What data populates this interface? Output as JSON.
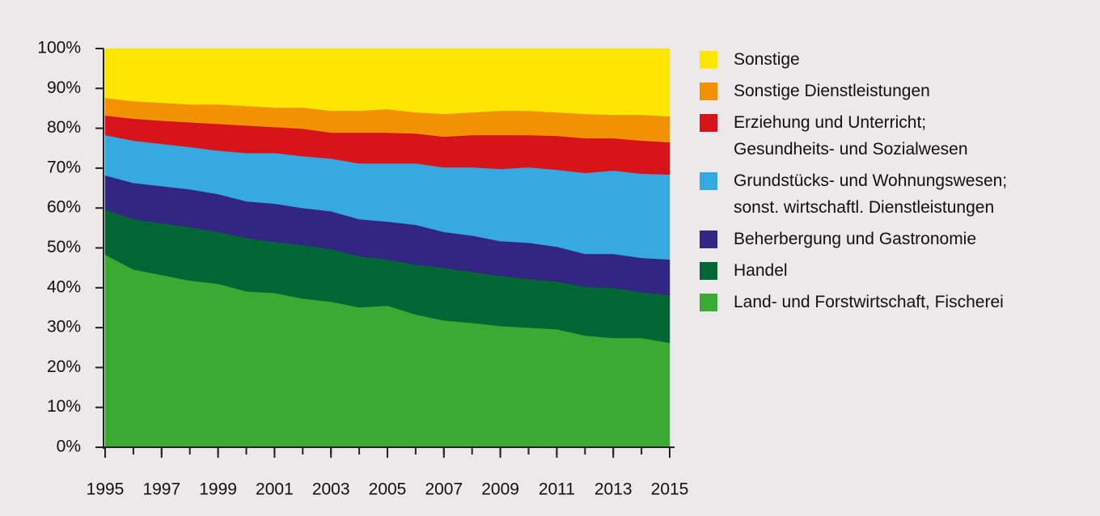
{
  "chart_data": {
    "type": "stacked-area",
    "x": [
      1995,
      1996,
      1997,
      1998,
      1999,
      2000,
      2001,
      2002,
      2003,
      2004,
      2005,
      2006,
      2007,
      2008,
      2009,
      2010,
      2011,
      2012,
      2013,
      2014,
      2015
    ],
    "xlim": [
      1995,
      2015
    ],
    "xticks": [
      1995,
      1997,
      1999,
      2001,
      2003,
      2005,
      2007,
      2009,
      2011,
      2013,
      2015
    ],
    "ylim": [
      0,
      100
    ],
    "yticks": [
      {
        "value": 0,
        "label": "0%"
      },
      {
        "value": 10,
        "label": "10%"
      },
      {
        "value": 20,
        "label": "20%"
      },
      {
        "value": 30,
        "label": "30%"
      },
      {
        "value": 40,
        "label": "40%"
      },
      {
        "value": 50,
        "label": "50%"
      },
      {
        "value": 60,
        "label": "60%"
      },
      {
        "value": 70,
        "label": "70%"
      },
      {
        "value": 80,
        "label": "80%"
      },
      {
        "value": 90,
        "label": "90%"
      },
      {
        "value": 100,
        "label": "100%"
      }
    ],
    "series": [
      {
        "name": "Sonstige",
        "color": "#ffe600",
        "values": [
          12.4,
          13.2,
          13.6,
          14.0,
          14.0,
          14.4,
          14.8,
          14.8,
          15.6,
          15.6,
          15.2,
          16.0,
          16.4,
          16.0,
          15.6,
          15.6,
          16.0,
          16.4,
          16.6,
          16.6,
          17.0
        ]
      },
      {
        "name": "Sonstige Dienstleistungen",
        "color": "#f39200",
        "values": [
          4.4,
          4.4,
          4.5,
          4.5,
          4.9,
          4.9,
          4.9,
          5.3,
          5.5,
          5.5,
          5.9,
          5.3,
          5.7,
          5.7,
          6.1,
          6.1,
          5.9,
          6.1,
          5.9,
          6.5,
          6.5
        ]
      },
      {
        "name": "Erziehung und Unterricht;\nGesundheits- und Sozialwesen",
        "color": "#d7141a",
        "values": [
          4.9,
          5.5,
          5.8,
          6.2,
          6.7,
          6.9,
          6.5,
          6.9,
          6.5,
          7.7,
          7.7,
          7.5,
          7.7,
          8.1,
          8.5,
          8.1,
          8.5,
          8.7,
          8.1,
          8.3,
          8.1
        ]
      },
      {
        "name": "Grundstücks- und Wohnungswesen;\nsonst. wirtschaftl. Dienstleistungen",
        "color": "#36a9e1",
        "values": [
          10.1,
          10.6,
          10.6,
          10.6,
          10.9,
          12.1,
          12.7,
          13.0,
          13.2,
          14.0,
          14.6,
          15.4,
          16.2,
          17.1,
          18.1,
          18.9,
          19.3,
          20.3,
          20.9,
          21.1,
          21.3
        ]
      },
      {
        "name": "Beherbergung und Gastronomie",
        "color": "#312783",
        "values": [
          8.6,
          9.1,
          9.3,
          9.5,
          9.5,
          9.2,
          9.6,
          9.3,
          9.5,
          9.3,
          9.5,
          10.0,
          9.0,
          9.1,
          8.7,
          9.1,
          8.7,
          8.3,
          8.5,
          8.6,
          9.0
        ]
      },
      {
        "name": "Handel",
        "color": "#006633",
        "values": [
          11.3,
          12.6,
          13.0,
          13.4,
          13.0,
          13.4,
          12.8,
          13.4,
          13.2,
          12.8,
          11.6,
          12.5,
          13.2,
          12.8,
          12.6,
          12.2,
          12.0,
          12.2,
          12.6,
          11.5,
          11.9
        ]
      },
      {
        "name": "Land- und Forstwirtschaft, Fischerei",
        "color": "#3aaa35",
        "values": [
          48.3,
          44.6,
          43.2,
          41.8,
          41.0,
          39.1,
          38.7,
          37.3,
          36.5,
          35.1,
          35.5,
          33.3,
          31.8,
          31.2,
          30.4,
          30.0,
          29.6,
          28.0,
          27.4,
          27.4,
          26.2
        ]
      }
    ]
  }
}
